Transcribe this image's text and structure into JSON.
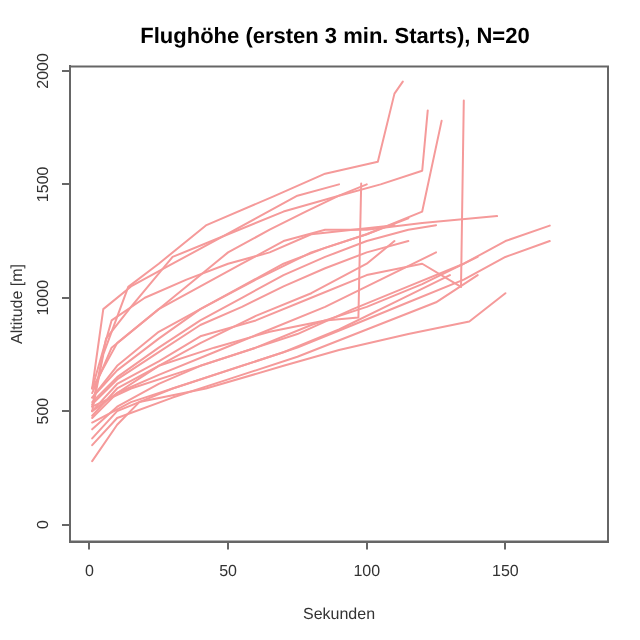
{
  "chart_data": {
    "type": "line",
    "title": "Flughöhe (ersten 3 min. Starts), N=20",
    "xlabel": "Sekunden",
    "ylabel": "Altitude [m]",
    "xlim": [
      -7,
      187
    ],
    "ylim": [
      -75,
      2020
    ],
    "xticks": [
      0,
      50,
      100,
      150
    ],
    "yticks": [
      0,
      500,
      1000,
      1500,
      2000
    ],
    "grid": false,
    "legend": false,
    "marker": "none",
    "series": [
      {
        "color": "#f59a9a",
        "x": [
          1,
          5,
          14,
          25,
          42,
          66,
          85,
          104,
          110,
          113
        ],
        "values": [
          500,
          750,
          1048,
          1150,
          1319,
          1445,
          1547,
          1600,
          1900,
          1953
        ]
      },
      {
        "color": "#f59a9a",
        "x": [
          1,
          6,
          15,
          30,
          50,
          70,
          90,
          105,
          120,
          122
        ],
        "values": [
          520,
          820,
          960,
          1180,
          1280,
          1380,
          1450,
          1500,
          1560,
          1826
        ]
      },
      {
        "color": "#f59a9a",
        "x": [
          1,
          10,
          25,
          40,
          60,
          80,
          100,
          120,
          127
        ],
        "values": [
          560,
          700,
          850,
          950,
          1080,
          1200,
          1280,
          1380,
          1780
        ]
      },
      {
        "color": "#f59a9a",
        "x": [
          1,
          10,
          25,
          40,
          60,
          80,
          100,
          120,
          134,
          135
        ],
        "values": [
          500,
          620,
          720,
          830,
          900,
          1000,
          1100,
          1150,
          1048,
          1870
        ]
      },
      {
        "color": "#f59a9a",
        "x": [
          1,
          10,
          25,
          45,
          65,
          85,
          97,
          98
        ],
        "values": [
          480,
          600,
          700,
          780,
          850,
          900,
          913,
          1504
        ]
      },
      {
        "color": "#f59a9a",
        "x": [
          1,
          10,
          25,
          40,
          55,
          70,
          85,
          100,
          120,
          147
        ],
        "values": [
          600,
          800,
          950,
          1050,
          1150,
          1250,
          1300,
          1300,
          1330,
          1360
        ]
      },
      {
        "color": "#f59a9a",
        "x": [
          1,
          15,
          35,
          55,
          75,
          95,
          115,
          135,
          150,
          166
        ],
        "values": [
          520,
          600,
          680,
          760,
          840,
          950,
          1050,
          1150,
          1250,
          1318
        ]
      },
      {
        "color": "#f59a9a",
        "x": [
          1,
          15,
          35,
          55,
          75,
          95,
          115,
          135,
          150,
          166
        ],
        "values": [
          450,
          540,
          620,
          700,
          780,
          880,
          980,
          1080,
          1180,
          1250
        ]
      },
      {
        "color": "#f59a9a",
        "x": [
          1,
          10,
          18,
          42,
          70,
          90,
          115,
          137,
          150
        ],
        "values": [
          280,
          440,
          540,
          600,
          700,
          770,
          840,
          895,
          1020
        ]
      },
      {
        "color": "#f59a9a",
        "x": [
          1,
          10,
          30,
          50,
          75,
          100,
          125,
          140
        ],
        "values": [
          350,
          470,
          560,
          640,
          740,
          860,
          980,
          1100
        ]
      },
      {
        "color": "#f59a9a",
        "x": [
          1,
          8,
          20,
          35,
          50,
          65,
          80,
          95,
          110
        ],
        "values": [
          600,
          900,
          1000,
          1080,
          1150,
          1200,
          1280,
          1300,
          1320
        ]
      },
      {
        "color": "#f59a9a",
        "x": [
          1,
          10,
          25,
          40,
          55,
          70,
          85,
          100,
          115,
          125
        ],
        "values": [
          540,
          650,
          780,
          900,
          1000,
          1100,
          1180,
          1250,
          1300,
          1320
        ]
      },
      {
        "color": "#f59a9a",
        "x": [
          1,
          5,
          15,
          30,
          45,
          60,
          75,
          90
        ],
        "values": [
          600,
          950,
          1050,
          1150,
          1250,
          1350,
          1450,
          1500
        ]
      },
      {
        "color": "#f59a9a",
        "x": [
          1,
          8,
          20,
          35,
          50,
          65,
          78,
          90,
          100
        ],
        "values": [
          580,
          780,
          900,
          1050,
          1200,
          1300,
          1380,
          1450,
          1500
        ]
      },
      {
        "color": "#f59a9a",
        "x": [
          1,
          10,
          25,
          40,
          60,
          80,
          100,
          120,
          140
        ],
        "values": [
          420,
          520,
          620,
          700,
          780,
          880,
          960,
          1060,
          1180
        ]
      },
      {
        "color": "#f59a9a",
        "x": [
          1,
          10,
          25,
          45,
          65,
          85,
          105,
          125
        ],
        "values": [
          500,
          580,
          660,
          760,
          860,
          960,
          1080,
          1200
        ]
      },
      {
        "color": "#f59a9a",
        "x": [
          1,
          10,
          25,
          40,
          55,
          70,
          85,
          100,
          115
        ],
        "values": [
          530,
          640,
          760,
          880,
          960,
          1050,
          1130,
          1200,
          1250
        ]
      },
      {
        "color": "#f59a9a",
        "x": [
          1,
          10,
          25,
          40,
          60,
          80,
          100,
          110
        ],
        "values": [
          470,
          580,
          700,
          800,
          920,
          1020,
          1150,
          1250
        ]
      },
      {
        "color": "#f59a9a",
        "x": [
          1,
          10,
          30,
          50,
          70,
          90,
          110,
          130
        ],
        "values": [
          380,
          500,
          600,
          680,
          760,
          860,
          980,
          1100
        ]
      },
      {
        "color": "#f59a9a",
        "x": [
          1,
          10,
          25,
          40,
          55,
          70,
          85,
          100,
          115
        ],
        "values": [
          560,
          680,
          820,
          950,
          1050,
          1150,
          1220,
          1280,
          1350
        ]
      }
    ]
  }
}
